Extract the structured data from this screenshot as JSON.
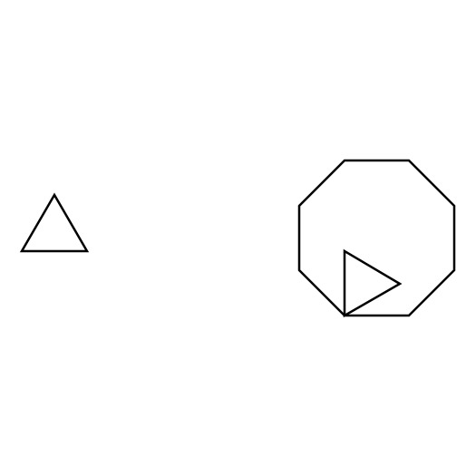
{
  "canvas": {
    "background": "#ffffff"
  },
  "shapes": [
    {
      "id": "left-triangle",
      "kind": "triangle",
      "orientation": "pointing-up",
      "stroke": "#000000"
    },
    {
      "id": "octagon",
      "kind": "octagon",
      "stroke": "#000000"
    },
    {
      "id": "inner-triangle",
      "kind": "triangle",
      "orientation": "pointing-right",
      "stroke": "#000000"
    }
  ]
}
